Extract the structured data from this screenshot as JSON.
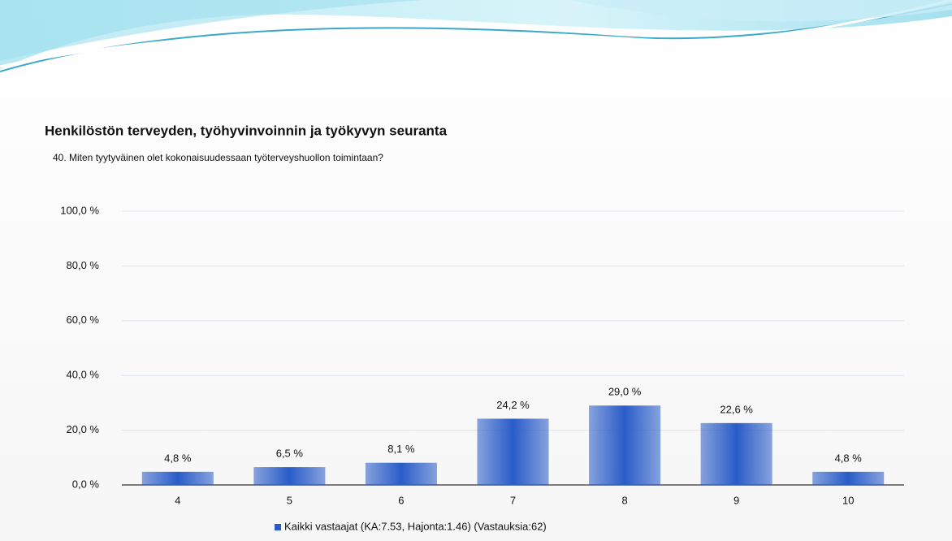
{
  "chart_data": {
    "type": "bar",
    "title": "Henkilöstön terveyden, työhyvinvoinnin ja työkyvyn seuranta",
    "subtitle": "40. Miten tyytyväinen olet kokonaisuudessaan työterveyshuollon toimintaan?",
    "categories": [
      "4",
      "5",
      "6",
      "7",
      "8",
      "9",
      "10"
    ],
    "series": [
      {
        "name": "Kaikki vastaajat (KA:7.53, Hajonta:1.46) (Vastauksia:62)",
        "color": "#2a5cc8",
        "values": [
          4.8,
          6.5,
          8.1,
          24.2,
          29.0,
          22.6,
          4.8
        ],
        "value_labels": [
          "4,8 %",
          "6,5 %",
          "8,1 %",
          "24,2 %",
          "29,0 %",
          "22,6 %",
          "4,8 %"
        ]
      }
    ],
    "ylim": [
      0,
      100
    ],
    "yticks": [
      {
        "value": 0,
        "label": "0,0 %"
      },
      {
        "value": 20,
        "label": "20,0 %"
      },
      {
        "value": 40,
        "label": "40,0 %"
      },
      {
        "value": 60,
        "label": "60,0 %"
      },
      {
        "value": 80,
        "label": "80,0 %"
      },
      {
        "value": 100,
        "label": "100,0 %"
      }
    ],
    "grid": true
  }
}
